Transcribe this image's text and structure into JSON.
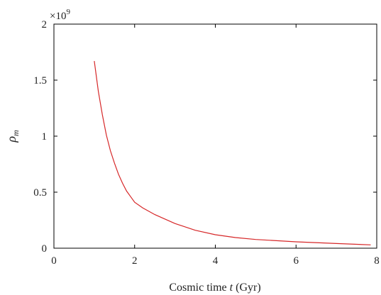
{
  "chart_data": {
    "type": "line",
    "xlabel_prefix": "Cosmic time ",
    "xlabel_var": "t",
    "xlabel_suffix": " (Gyr)",
    "ylabel_main": "ρ",
    "ylabel_sub": "m",
    "y_multiplier_base": "×10",
    "y_multiplier_exp": "9",
    "xlim": [
      0,
      8
    ],
    "ylim": [
      0,
      2
    ],
    "x_ticks": [
      0,
      2,
      4,
      6,
      8
    ],
    "y_ticks": [
      0,
      0.5,
      1,
      1.5,
      2
    ],
    "x_tick_labels": [
      "0",
      "2",
      "4",
      "6",
      "8"
    ],
    "y_tick_labels": [
      "0",
      "0.5",
      "1",
      "1.5",
      "2"
    ],
    "grid": false,
    "series": [
      {
        "color": "#d62728",
        "x": [
          1.0,
          1.1,
          1.2,
          1.3,
          1.4,
          1.5,
          1.6,
          1.7,
          1.8,
          1.9,
          2.0,
          2.2,
          2.5,
          3.0,
          3.5,
          4.0,
          4.5,
          5.0,
          6.0,
          7.0,
          7.85
        ],
        "y": [
          1.67,
          1.4,
          1.19,
          1.01,
          0.87,
          0.76,
          0.66,
          0.58,
          0.51,
          0.46,
          0.41,
          0.36,
          0.3,
          0.22,
          0.16,
          0.12,
          0.095,
          0.078,
          0.057,
          0.042,
          0.03
        ]
      }
    ]
  }
}
